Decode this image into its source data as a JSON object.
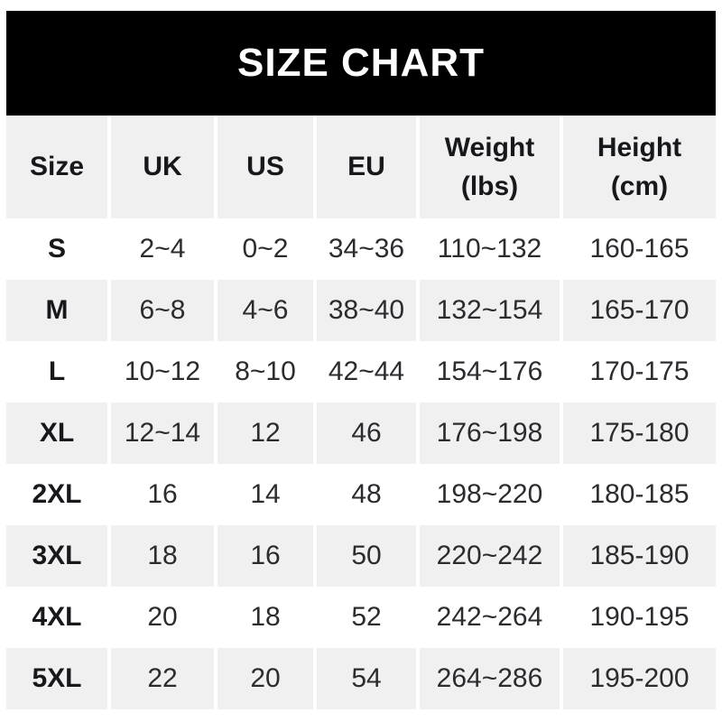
{
  "banner": {
    "title": "SIZE CHART"
  },
  "colors": {
    "banner_bg": "#000000",
    "banner_text": "#ffffff",
    "row_gray": "#f0f0f0",
    "row_white": "#ffffff",
    "header_text": "#17181c",
    "body_text": "#2b2c2f"
  },
  "table": {
    "headers": [
      "Size",
      "UK",
      "US",
      "EU",
      "Weight\n(lbs)",
      "Height\n(cm)"
    ],
    "rows": [
      [
        "S",
        "2~4",
        "0~2",
        "34~36",
        "110~132",
        "160-165"
      ],
      [
        "M",
        "6~8",
        "4~6",
        "38~40",
        "132~154",
        "165-170"
      ],
      [
        "L",
        "10~12",
        "8~10",
        "42~44",
        "154~176",
        "170-175"
      ],
      [
        "XL",
        "12~14",
        "12",
        "46",
        "176~198",
        "175-180"
      ],
      [
        "2XL",
        "16",
        "14",
        "48",
        "198~220",
        "180-185"
      ],
      [
        "3XL",
        "18",
        "16",
        "50",
        "220~242",
        "185-190"
      ],
      [
        "4XL",
        "20",
        "18",
        "52",
        "242~264",
        "190-195"
      ],
      [
        "5XL",
        "22",
        "20",
        "54",
        "264~286",
        "195-200"
      ]
    ]
  },
  "chart_data": {
    "type": "table",
    "title": "SIZE CHART",
    "columns": [
      "Size",
      "UK",
      "US",
      "EU",
      "Weight (lbs)",
      "Height (cm)"
    ],
    "rows": [
      [
        "S",
        "2~4",
        "0~2",
        "34~36",
        "110~132",
        "160-165"
      ],
      [
        "M",
        "6~8",
        "4~6",
        "38~40",
        "132~154",
        "165-170"
      ],
      [
        "L",
        "10~12",
        "8~10",
        "42~44",
        "154~176",
        "170-175"
      ],
      [
        "XL",
        "12~14",
        "12",
        "46",
        "176~198",
        "175-180"
      ],
      [
        "2XL",
        "16",
        "14",
        "48",
        "198~220",
        "180-185"
      ],
      [
        "3XL",
        "18",
        "16",
        "50",
        "220~242",
        "185-190"
      ],
      [
        "4XL",
        "20",
        "18",
        "52",
        "242~264",
        "190-195"
      ],
      [
        "5XL",
        "22",
        "20",
        "54",
        "264~286",
        "195-200"
      ]
    ],
    "layout": {
      "striped_rows": true,
      "header_background": "#f0f0f0",
      "grid": "column gutters only"
    }
  }
}
